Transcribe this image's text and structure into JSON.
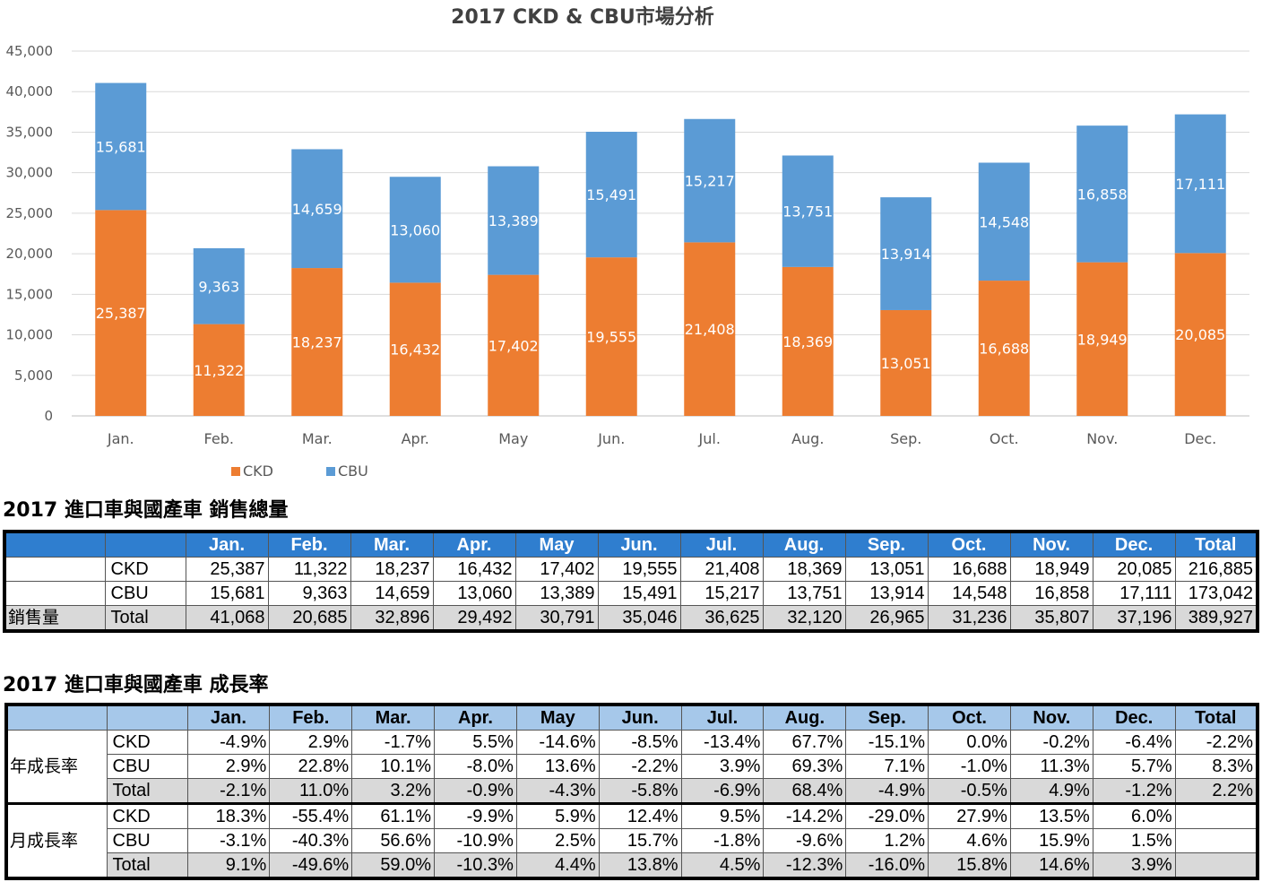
{
  "chart_data": {
    "type": "bar",
    "stacked": true,
    "title": "2017  CKD & CBU市場分析",
    "categories": [
      "Jan.",
      "Feb.",
      "Mar.",
      "Apr.",
      "May",
      "Jun.",
      "Jul.",
      "Aug.",
      "Sep.",
      "Oct.",
      "Nov.",
      "Dec."
    ],
    "series": [
      {
        "name": "CKD",
        "color": "#ed7d31",
        "values": [
          25387,
          11322,
          18237,
          16432,
          17402,
          19555,
          21408,
          18369,
          13051,
          16688,
          18949,
          20085
        ],
        "labels": [
          "25,387",
          "11,322",
          "18,237",
          "16,432",
          "17,402",
          "19,555",
          "21,408",
          "18,369",
          "13,051",
          "16,688",
          "18,949",
          "20,085"
        ]
      },
      {
        "name": "CBU",
        "color": "#5b9bd5",
        "values": [
          15681,
          9363,
          14659,
          13060,
          13389,
          15491,
          15217,
          13751,
          13914,
          14548,
          16858,
          17111
        ],
        "labels": [
          "15,681",
          "9,363",
          "14,659",
          "13,060",
          "13,389",
          "15,491",
          "15,217",
          "13,751",
          "13,914",
          "14,548",
          "16,858",
          "17,111"
        ]
      }
    ],
    "ylim": [
      0,
      45000
    ],
    "yticks": [
      "0",
      "5,000",
      "10,000",
      "15,000",
      "20,000",
      "25,000",
      "30,000",
      "35,000",
      "40,000",
      "45,000"
    ],
    "grid": true,
    "legend": "bottom-left"
  },
  "sales_table": {
    "title": "2017  進口車與國產車 銷售總量",
    "headers": [
      "Jan.",
      "Feb.",
      "Mar.",
      "Apr.",
      "May",
      "Jun.",
      "Jul.",
      "Aug.",
      "Sep.",
      "Oct.",
      "Nov.",
      "Dec.",
      "Total"
    ],
    "group_label": "銷售量",
    "rows": [
      {
        "label": "CKD",
        "values": [
          "25,387",
          "11,322",
          "18,237",
          "16,432",
          "17,402",
          "19,555",
          "21,408",
          "18,369",
          "13,051",
          "16,688",
          "18,949",
          "20,085",
          "216,885"
        ]
      },
      {
        "label": "CBU",
        "values": [
          "15,681",
          "9,363",
          "14,659",
          "13,060",
          "13,389",
          "15,491",
          "15,217",
          "13,751",
          "13,914",
          "14,548",
          "16,858",
          "17,111",
          "173,042"
        ]
      },
      {
        "label": "Total",
        "values": [
          "41,068",
          "20,685",
          "32,896",
          "29,492",
          "30,791",
          "35,046",
          "36,625",
          "32,120",
          "26,965",
          "31,236",
          "35,807",
          "37,196",
          "389,927"
        ]
      }
    ]
  },
  "growth_table": {
    "title": "2017 進口車與國產車 成長率",
    "headers": [
      "Jan.",
      "Feb.",
      "Mar.",
      "Apr.",
      "May",
      "Jun.",
      "Jul.",
      "Aug.",
      "Sep.",
      "Oct.",
      "Nov.",
      "Dec.",
      "Total"
    ],
    "groups": [
      {
        "label": "年成長率",
        "rows": [
          {
            "label": "CKD",
            "values": [
              "-4.9%",
              "2.9%",
              "-1.7%",
              "5.5%",
              "-14.6%",
              "-8.5%",
              "-13.4%",
              "67.7%",
              "-15.1%",
              "0.0%",
              "-0.2%",
              "-6.4%",
              "-2.2%"
            ]
          },
          {
            "label": "CBU",
            "values": [
              "2.9%",
              "22.8%",
              "10.1%",
              "-8.0%",
              "13.6%",
              "-2.2%",
              "3.9%",
              "69.3%",
              "7.1%",
              "-1.0%",
              "11.3%",
              "5.7%",
              "8.3%"
            ]
          },
          {
            "label": "Total",
            "values": [
              "-2.1%",
              "11.0%",
              "3.2%",
              "-0.9%",
              "-4.3%",
              "-5.8%",
              "-6.9%",
              "68.4%",
              "-4.9%",
              "-0.5%",
              "4.9%",
              "-1.2%",
              "2.2%"
            ]
          }
        ]
      },
      {
        "label": "月成長率",
        "rows": [
          {
            "label": "CKD",
            "values": [
              "18.3%",
              "-55.4%",
              "61.1%",
              "-9.9%",
              "5.9%",
              "12.4%",
              "9.5%",
              "-14.2%",
              "-29.0%",
              "27.9%",
              "13.5%",
              "6.0%",
              ""
            ]
          },
          {
            "label": "CBU",
            "values": [
              "-3.1%",
              "-40.3%",
              "56.6%",
              "-10.9%",
              "2.5%",
              "15.7%",
              "-1.8%",
              "-9.6%",
              "1.2%",
              "4.6%",
              "15.9%",
              "1.5%",
              ""
            ]
          },
          {
            "label": "Total",
            "values": [
              "9.1%",
              "-49.6%",
              "59.0%",
              "-10.3%",
              "4.4%",
              "13.8%",
              "4.5%",
              "-12.3%",
              "-16.0%",
              "15.8%",
              "14.6%",
              "3.9%",
              ""
            ]
          }
        ]
      }
    ]
  }
}
